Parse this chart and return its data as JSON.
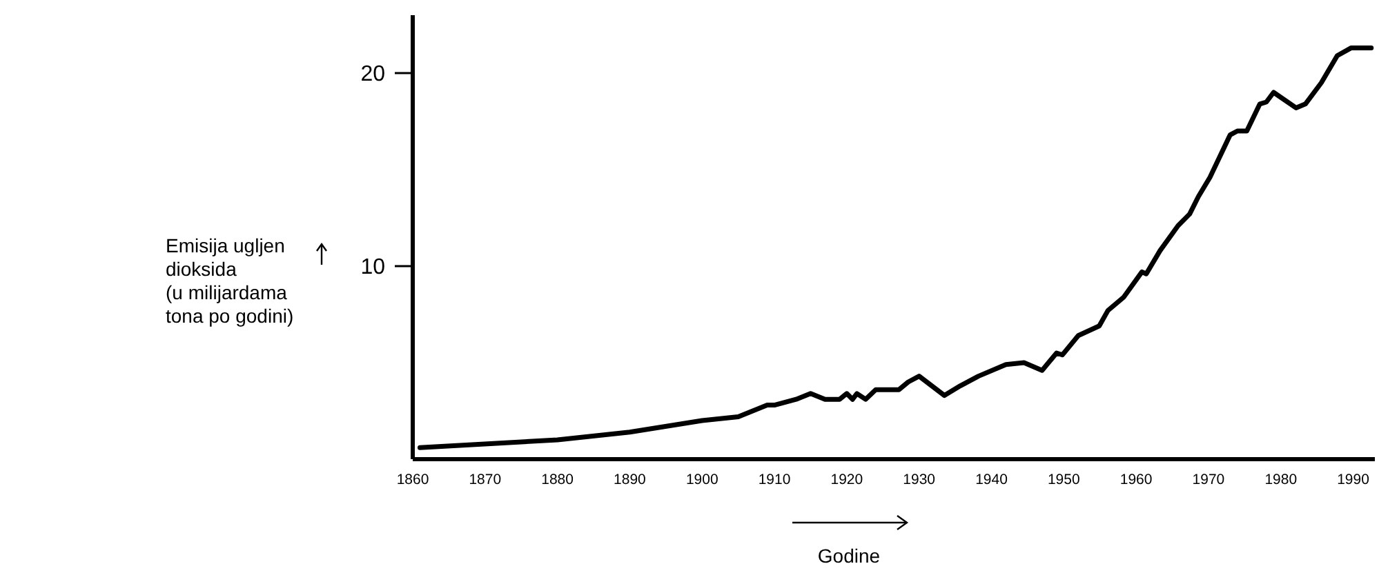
{
  "chart_data": {
    "type": "line",
    "xlabel": "Godine",
    "ylabel": "Emisija ugljen\ndioksida\n(u milijardama\ntona po godini)",
    "xlim": [
      1860,
      1993
    ],
    "xticks": [
      1860,
      1870,
      1880,
      1890,
      1900,
      1910,
      1920,
      1930,
      1940,
      1950,
      1960,
      1970,
      1980,
      1990
    ],
    "ylim": [
      0,
      23
    ],
    "yticks": [
      10,
      20
    ],
    "grid": false,
    "marker": "none",
    "line_style": "solid",
    "series": [
      {
        "color": "#000000",
        "x": [
          1861,
          1880,
          1890,
          1900,
          1905,
          1909,
          1910,
          1913,
          1915,
          1917,
          1919,
          1920,
          1920.8,
          1921.4,
          1922.6,
          1924,
          1927.2,
          1928.5,
          1930,
          1933.5,
          1935.7,
          1938.2,
          1942,
          1944.5,
          1947,
          1949,
          1949.8,
          1952,
          1954.9,
          1956.1,
          1958.3,
          1960.8,
          1961.4,
          1963.3,
          1965.8,
          1967.4,
          1968.6,
          1970.2,
          1973,
          1974,
          1975.3,
          1977.1,
          1978,
          1979,
          1982.1,
          1983.4,
          1985.6,
          1987.8,
          1989.7,
          1992.5
        ],
        "values": [
          0.6,
          1.0,
          1.4,
          2.0,
          2.2,
          2.8,
          2.8,
          3.1,
          3.4,
          3.1,
          3.1,
          3.4,
          3.1,
          3.4,
          3.1,
          3.6,
          3.6,
          4.0,
          4.3,
          3.3,
          3.8,
          4.3,
          4.9,
          5.0,
          4.6,
          5.5,
          5.4,
          6.4,
          6.9,
          7.7,
          8.4,
          9.7,
          9.6,
          10.8,
          12.1,
          12.7,
          13.6,
          14.6,
          16.8,
          17.0,
          17.0,
          18.4,
          18.5,
          19.0,
          18.2,
          18.4,
          19.5,
          20.9,
          21.3,
          21.3
        ]
      }
    ]
  }
}
